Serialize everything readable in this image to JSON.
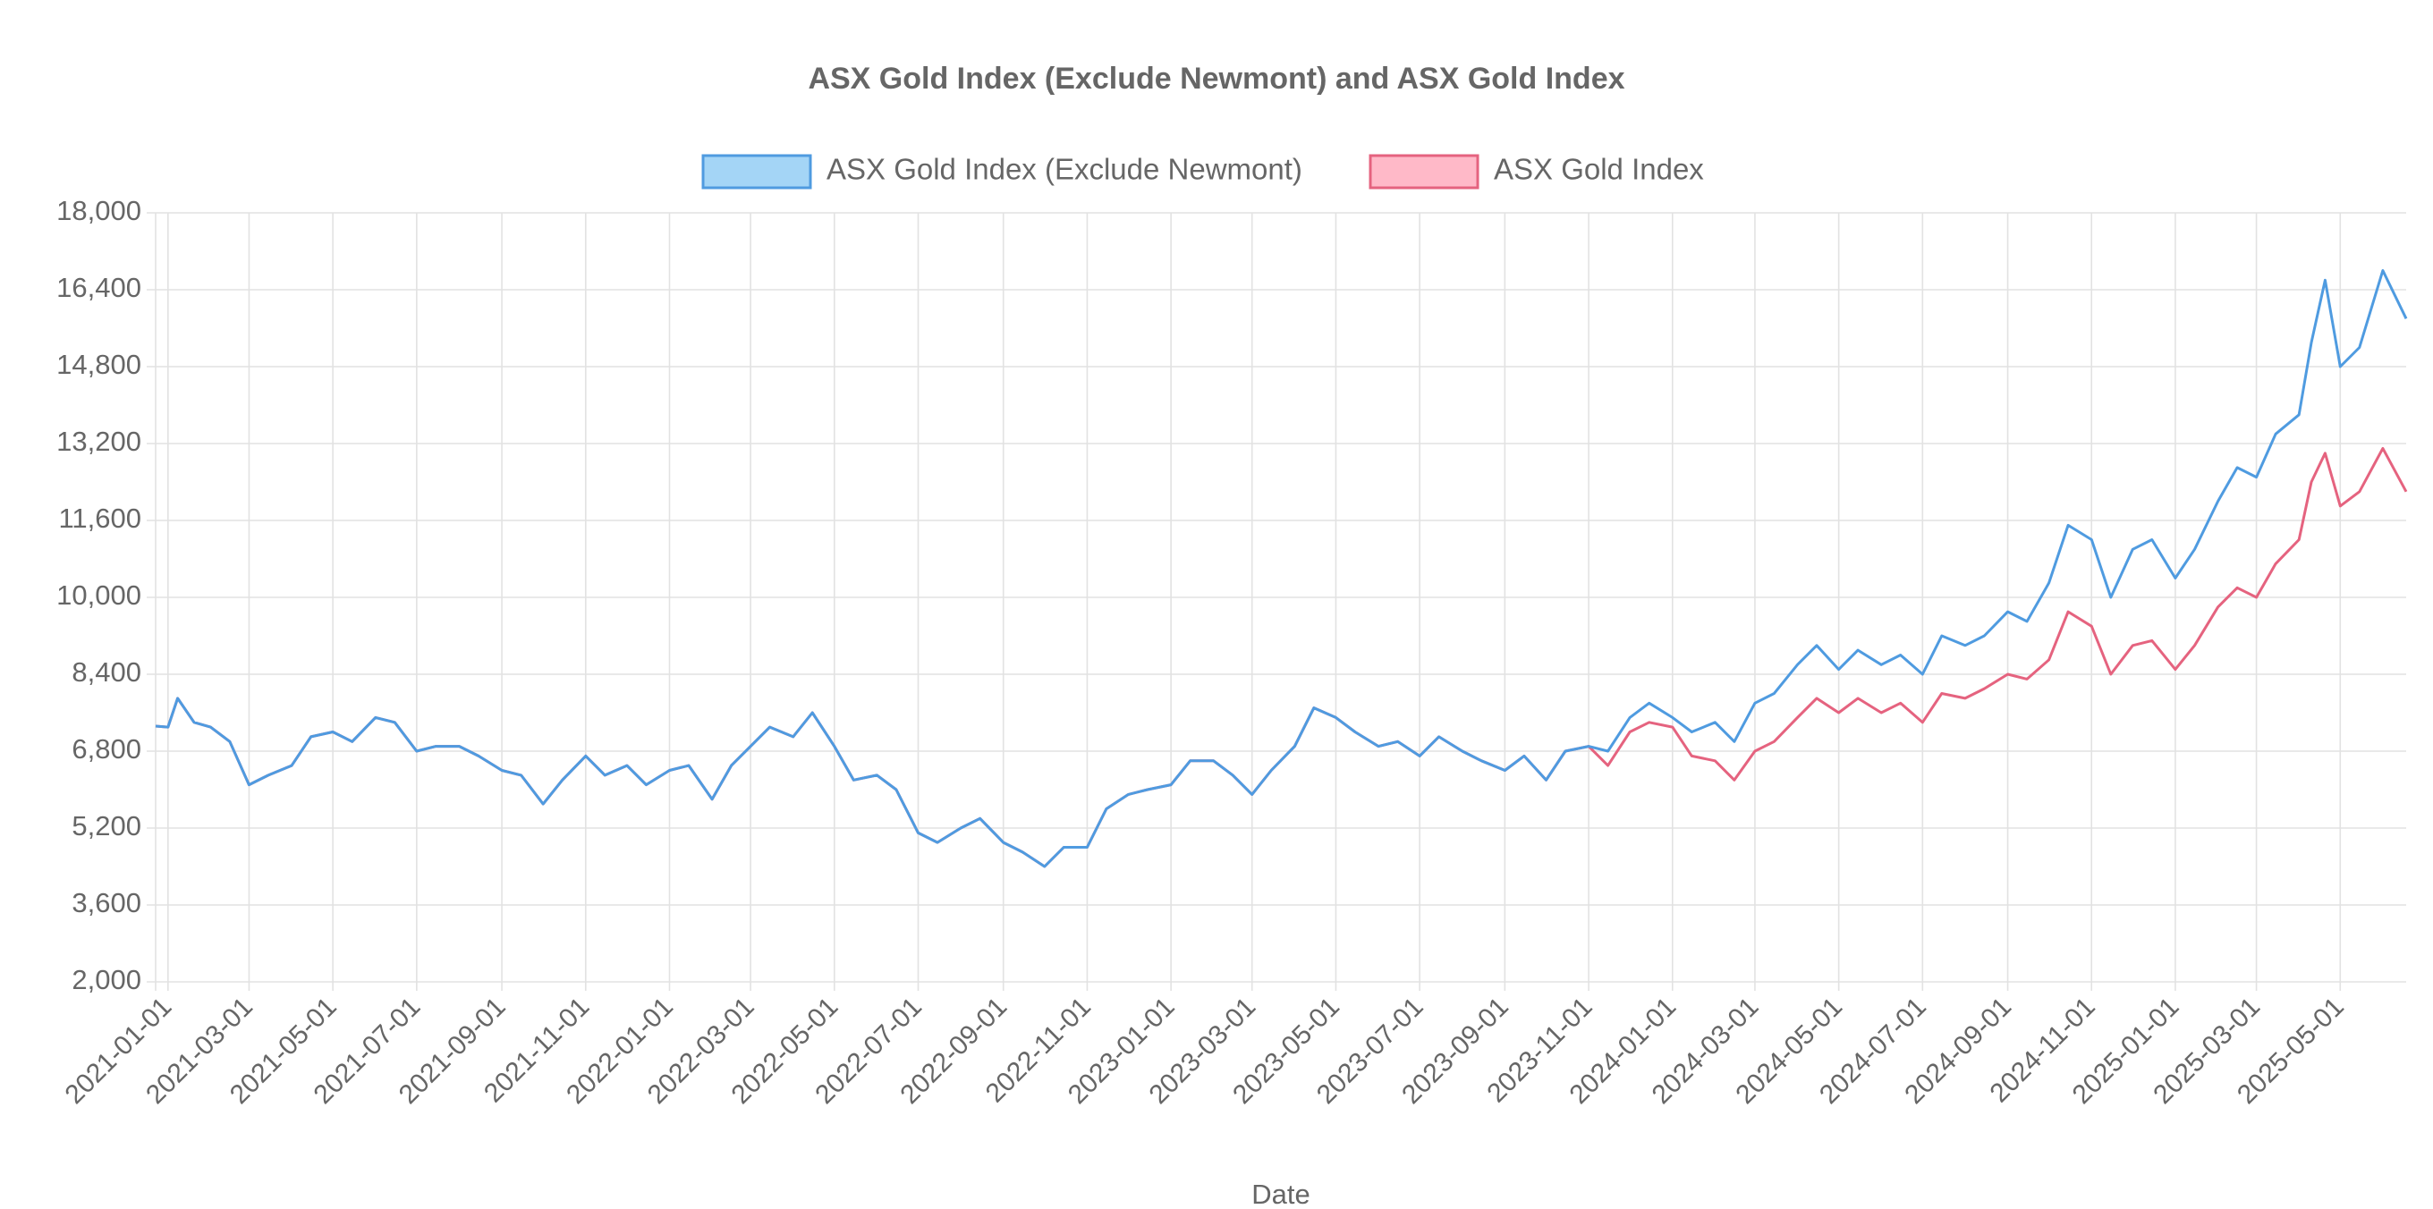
{
  "chart_data": {
    "type": "line",
    "title": "ASX Gold Index (Exclude Newmont) and ASX Gold Index",
    "xlabel": "Date",
    "grid": true,
    "legend": "top",
    "x": [
      "2020-12-23",
      "2021-01-01",
      "2021-01-08",
      "2021-01-20",
      "2021-02-01",
      "2021-02-15",
      "2021-03-01",
      "2021-03-15",
      "2021-04-01",
      "2021-04-15",
      "2021-05-01",
      "2021-05-15",
      "2021-06-01",
      "2021-06-15",
      "2021-07-01",
      "2021-07-15",
      "2021-08-01",
      "2021-08-15",
      "2021-09-01",
      "2021-09-15",
      "2021-10-01",
      "2021-10-15",
      "2021-11-01",
      "2021-11-15",
      "2021-12-01",
      "2021-12-15",
      "2022-01-01",
      "2022-01-15",
      "2022-02-01",
      "2022-02-15",
      "2022-03-01",
      "2022-03-15",
      "2022-04-01",
      "2022-04-15",
      "2022-05-01",
      "2022-05-15",
      "2022-06-01",
      "2022-06-15",
      "2022-07-01",
      "2022-07-15",
      "2022-08-01",
      "2022-08-15",
      "2022-09-01",
      "2022-09-15",
      "2022-10-01",
      "2022-10-15",
      "2022-11-01",
      "2022-11-15",
      "2022-12-01",
      "2022-12-15",
      "2023-01-01",
      "2023-01-15",
      "2023-02-01",
      "2023-02-15",
      "2023-03-01",
      "2023-03-15",
      "2023-04-01",
      "2023-04-15",
      "2023-05-01",
      "2023-05-15",
      "2023-06-01",
      "2023-06-15",
      "2023-07-01",
      "2023-07-15",
      "2023-08-01",
      "2023-08-15",
      "2023-09-01",
      "2023-09-15",
      "2023-10-01",
      "2023-10-15",
      "2023-11-01",
      "2023-11-15",
      "2023-12-01",
      "2023-12-15",
      "2024-01-01",
      "2024-01-15",
      "2024-02-01",
      "2024-02-15",
      "2024-03-01",
      "2024-03-15",
      "2024-04-01",
      "2024-04-15",
      "2024-05-01",
      "2024-05-15",
      "2024-06-01",
      "2024-06-15",
      "2024-07-01",
      "2024-07-15",
      "2024-08-01",
      "2024-08-15",
      "2024-09-01",
      "2024-09-15",
      "2024-10-01",
      "2024-10-15",
      "2024-11-01",
      "2024-11-15",
      "2024-12-01",
      "2024-12-15",
      "2025-01-01",
      "2025-01-15",
      "2025-02-01",
      "2025-02-15",
      "2025-03-01",
      "2025-03-15",
      "2025-04-01",
      "2025-04-10",
      "2025-04-20",
      "2025-05-01",
      "2025-05-15",
      "2025-06-01",
      "2025-06-18"
    ],
    "series": [
      {
        "name": "ASX Gold Index (Exclude Newmont)",
        "color": "#4f9be0",
        "fill": "rgba(54,162,235,0.45)",
        "values": [
          7320,
          7300,
          7900,
          7400,
          7300,
          7000,
          6100,
          6300,
          6500,
          7100,
          7200,
          7000,
          7500,
          7400,
          6800,
          6900,
          6900,
          6700,
          6400,
          6300,
          5700,
          6200,
          6700,
          6300,
          6500,
          6100,
          6400,
          6500,
          5800,
          6500,
          6900,
          7300,
          7100,
          7600,
          6900,
          6200,
          6300,
          6000,
          5100,
          4900,
          5200,
          5400,
          4900,
          4700,
          4400,
          4800,
          4800,
          5600,
          5900,
          6000,
          6100,
          6600,
          6600,
          6300,
          5900,
          6400,
          6900,
          7700,
          7500,
          7200,
          6900,
          7000,
          6700,
          7100,
          6800,
          6600,
          6400,
          6700,
          6200,
          6800,
          6900,
          6800,
          7500,
          7800,
          7500,
          7200,
          7400,
          7000,
          7800,
          8000,
          8600,
          9000,
          8500,
          8900,
          8600,
          8800,
          8400,
          9200,
          9000,
          9200,
          9700,
          9500,
          10300,
          11500,
          11200,
          10000,
          11000,
          11200,
          10400,
          11000,
          12000,
          12700,
          12500,
          13400,
          13800,
          15300,
          16600,
          14800,
          15200,
          16800,
          15800
        ]
      },
      {
        "name": "ASX Gold Index",
        "color": "#e5637f",
        "fill": "rgba(255,99,132,0.45)",
        "values": [
          7320,
          7300,
          7900,
          7400,
          7300,
          7000,
          6100,
          6300,
          6500,
          7100,
          7200,
          7000,
          7500,
          7400,
          6800,
          6900,
          6900,
          6700,
          6400,
          6300,
          5700,
          6200,
          6700,
          6300,
          6500,
          6100,
          6400,
          6500,
          5800,
          6500,
          6900,
          7300,
          7100,
          7600,
          6900,
          6200,
          6300,
          6000,
          5100,
          4900,
          5200,
          5400,
          4900,
          4700,
          4400,
          4800,
          4800,
          5600,
          5900,
          6000,
          6100,
          6600,
          6600,
          6300,
          5900,
          6400,
          6900,
          7700,
          7500,
          7200,
          6900,
          7000,
          6700,
          7100,
          6800,
          6600,
          6400,
          6700,
          6200,
          6800,
          6900,
          6500,
          7200,
          7400,
          7300,
          6700,
          6600,
          6200,
          6800,
          7000,
          7500,
          7900,
          7600,
          7900,
          7600,
          7800,
          7400,
          8000,
          7900,
          8100,
          8400,
          8300,
          8700,
          9700,
          9400,
          8400,
          9000,
          9100,
          8500,
          9000,
          9800,
          10200,
          10000,
          10700,
          11200,
          12400,
          13000,
          11900,
          12200,
          13100,
          12200
        ]
      }
    ],
    "xlim": [
      "2020-12-23",
      "2025-06-18"
    ],
    "xticks": [
      "2021-01-01",
      "2021-03-01",
      "2021-05-01",
      "2021-07-01",
      "2021-09-01",
      "2021-11-01",
      "2022-01-01",
      "2022-03-01",
      "2022-05-01",
      "2022-07-01",
      "2022-09-01",
      "2022-11-01",
      "2023-01-01",
      "2023-03-01",
      "2023-05-01",
      "2023-07-01",
      "2023-09-01",
      "2023-11-01",
      "2024-01-01",
      "2024-03-01",
      "2024-05-01",
      "2024-07-01",
      "2024-09-01",
      "2024-11-01",
      "2025-01-01",
      "2025-03-01",
      "2025-05-01"
    ],
    "ylim": [
      2000,
      18000
    ],
    "yticks": [
      {
        "value": 2000,
        "label": "2,000"
      },
      {
        "value": 3600,
        "label": "3,600"
      },
      {
        "value": 5200,
        "label": "5,200"
      },
      {
        "value": 6800,
        "label": "6,800"
      },
      {
        "value": 8400,
        "label": "8,400"
      },
      {
        "value": 10000,
        "label": "10,000"
      },
      {
        "value": 11600,
        "label": "11,600"
      },
      {
        "value": 13200,
        "label": "13,200"
      },
      {
        "value": 14800,
        "label": "14,800"
      },
      {
        "value": 16400,
        "label": "16,400"
      },
      {
        "value": 18000,
        "label": "18,000"
      }
    ]
  }
}
